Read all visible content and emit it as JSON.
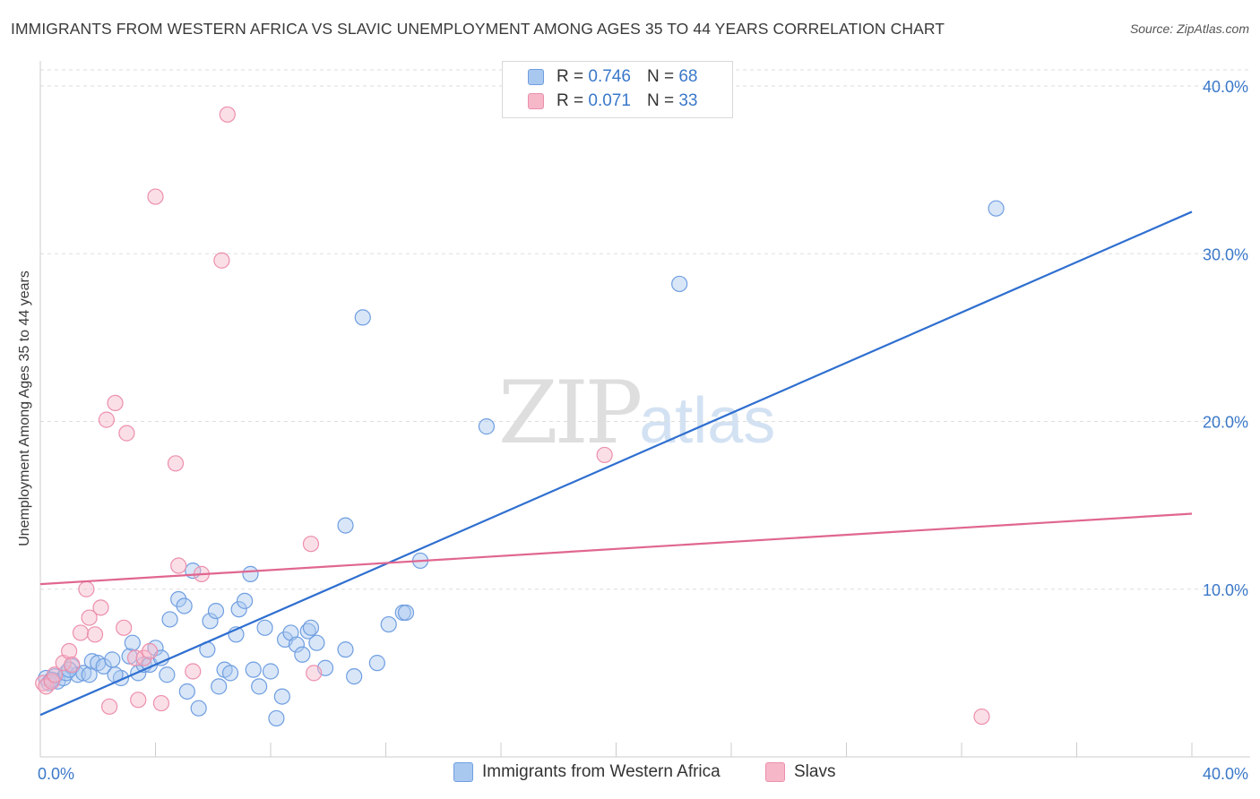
{
  "title": "IMMIGRANTS FROM WESTERN AFRICA VS SLAVIC UNEMPLOYMENT AMONG AGES 35 TO 44 YEARS CORRELATION CHART",
  "source": "Source: ZipAtlas.com",
  "watermark": {
    "zip": "ZIP",
    "atlas": "atlas"
  },
  "colors": {
    "blue_fill": "#a9c8f0",
    "blue_stroke": "#6f9ee0",
    "blue_line": "#2f6fd0",
    "pink_fill": "#f6b7c9",
    "pink_stroke": "#ec8fac",
    "pink_line": "#e06690",
    "tick_text": "#3a78c9",
    "grid": "#dddddd"
  },
  "legend_top": {
    "rows": [
      {
        "r_label": "R =",
        "r_value": "0.746",
        "n_label": "N =",
        "n_value": "68",
        "series": "blue"
      },
      {
        "r_label": "R =",
        "r_value": "0.071",
        "n_label": "N =",
        "n_value": "33",
        "series": "pink"
      }
    ]
  },
  "chart_data": {
    "type": "scatter",
    "title": "IMMIGRANTS FROM WESTERN AFRICA VS SLAVIC UNEMPLOYMENT AMONG AGES 35 TO 44 YEARS CORRELATION CHART",
    "xlabel": "",
    "ylabel": "Unemployment Among Ages 35 to 44 years",
    "xlim": [
      0,
      40
    ],
    "ylim": [
      0,
      40
    ],
    "x_ticks": [
      "0.0%",
      "40.0%"
    ],
    "y_ticks": [
      {
        "value": 10,
        "label": "10.0%"
      },
      {
        "value": 20,
        "label": "20.0%"
      },
      {
        "value": 30,
        "label": "30.0%"
      },
      {
        "value": 40,
        "label": "40.0%"
      }
    ],
    "series": [
      {
        "name": "Immigrants from Western Africa",
        "color": "blue",
        "trend": {
          "x0": 0,
          "y0": 2.5,
          "x1": 40,
          "y1": 32.5
        },
        "points": [
          [
            0.2,
            4.7
          ],
          [
            0.3,
            4.4
          ],
          [
            0.5,
            4.8
          ],
          [
            0.6,
            4.5
          ],
          [
            0.8,
            4.7
          ],
          [
            0.9,
            5.0
          ],
          [
            1.1,
            5.4
          ],
          [
            1.3,
            4.9
          ],
          [
            1.5,
            5.0
          ],
          [
            1.7,
            4.9
          ],
          [
            1.8,
            5.7
          ],
          [
            2.0,
            5.6
          ],
          [
            2.2,
            5.4
          ],
          [
            2.5,
            5.8
          ],
          [
            2.8,
            4.7
          ],
          [
            3.1,
            6.0
          ],
          [
            3.2,
            6.8
          ],
          [
            3.4,
            5.0
          ],
          [
            3.6,
            5.5
          ],
          [
            3.8,
            5.5
          ],
          [
            4.0,
            6.5
          ],
          [
            4.2,
            5.9
          ],
          [
            4.4,
            4.9
          ],
          [
            4.5,
            8.2
          ],
          [
            4.8,
            9.4
          ],
          [
            5.0,
            9.0
          ],
          [
            5.1,
            3.9
          ],
          [
            5.3,
            11.1
          ],
          [
            5.5,
            2.9
          ],
          [
            5.8,
            6.4
          ],
          [
            5.9,
            8.1
          ],
          [
            6.1,
            8.7
          ],
          [
            6.2,
            4.2
          ],
          [
            6.4,
            5.2
          ],
          [
            6.6,
            5.0
          ],
          [
            6.8,
            7.3
          ],
          [
            6.9,
            8.8
          ],
          [
            7.1,
            9.3
          ],
          [
            7.3,
            10.9
          ],
          [
            7.4,
            5.2
          ],
          [
            7.6,
            4.2
          ],
          [
            7.8,
            7.7
          ],
          [
            8.0,
            5.1
          ],
          [
            8.2,
            2.3
          ],
          [
            8.4,
            3.6
          ],
          [
            8.5,
            7.0
          ],
          [
            8.7,
            7.4
          ],
          [
            8.9,
            6.7
          ],
          [
            9.1,
            6.1
          ],
          [
            9.3,
            7.5
          ],
          [
            9.4,
            7.7
          ],
          [
            9.6,
            6.8
          ],
          [
            9.9,
            5.3
          ],
          [
            10.6,
            13.8
          ],
          [
            10.6,
            6.4
          ],
          [
            10.9,
            4.8
          ],
          [
            11.2,
            26.2
          ],
          [
            11.7,
            5.6
          ],
          [
            12.1,
            7.9
          ],
          [
            12.6,
            8.6
          ],
          [
            12.7,
            8.6
          ],
          [
            13.2,
            11.7
          ],
          [
            15.5,
            19.7
          ],
          [
            22.2,
            28.2
          ],
          [
            33.2,
            32.7
          ],
          [
            1.0,
            5.2
          ],
          [
            2.6,
            4.9
          ],
          [
            0.4,
            4.6
          ]
        ]
      },
      {
        "name": "Slavs",
        "color": "pink",
        "trend": {
          "x0": 0,
          "y0": 10.3,
          "x1": 40,
          "y1": 14.5
        },
        "points": [
          [
            0.1,
            4.4
          ],
          [
            0.2,
            4.2
          ],
          [
            0.4,
            4.5
          ],
          [
            0.5,
            4.9
          ],
          [
            0.8,
            5.6
          ],
          [
            1.0,
            6.3
          ],
          [
            1.1,
            5.5
          ],
          [
            1.4,
            7.4
          ],
          [
            1.6,
            10.0
          ],
          [
            1.7,
            8.3
          ],
          [
            1.9,
            7.3
          ],
          [
            2.1,
            8.9
          ],
          [
            2.3,
            20.1
          ],
          [
            2.4,
            3.0
          ],
          [
            2.6,
            21.1
          ],
          [
            2.9,
            7.7
          ],
          [
            3.0,
            19.3
          ],
          [
            3.3,
            5.9
          ],
          [
            3.4,
            3.4
          ],
          [
            3.6,
            5.9
          ],
          [
            3.8,
            6.3
          ],
          [
            4.0,
            33.4
          ],
          [
            4.2,
            3.2
          ],
          [
            4.7,
            17.5
          ],
          [
            4.8,
            11.4
          ],
          [
            5.3,
            5.1
          ],
          [
            5.6,
            10.9
          ],
          [
            6.3,
            29.6
          ],
          [
            6.5,
            38.3
          ],
          [
            9.4,
            12.7
          ],
          [
            9.5,
            5.0
          ],
          [
            19.6,
            18.0
          ],
          [
            32.7,
            2.4
          ]
        ]
      }
    ]
  },
  "legend_bottom": {
    "items": [
      {
        "label": "Immigrants from Western Africa",
        "color": "blue"
      },
      {
        "label": "Slavs",
        "color": "pink"
      }
    ]
  }
}
